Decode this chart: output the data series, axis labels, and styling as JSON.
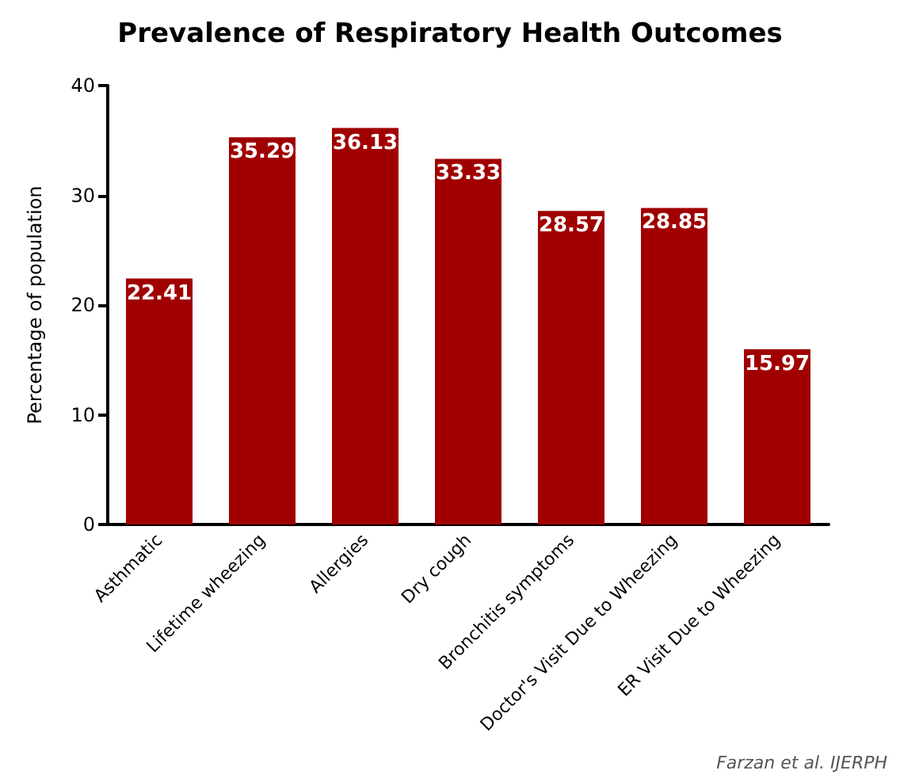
{
  "chart_data": {
    "type": "bar",
    "title": "Prevalence of Respiratory Health Outcomes",
    "ylabel": "Percentage of population",
    "categories": [
      "Asthmatic",
      "Lifetime wheezing",
      "Allergies",
      "Dry cough",
      "Bronchitis symptoms",
      "Doctor's Visit Due to Wheezing",
      "ER Visit Due to Wheezing"
    ],
    "values": [
      22.41,
      35.29,
      36.13,
      33.33,
      28.57,
      28.85,
      15.97
    ],
    "color": "#a00000",
    "ylim": [
      0,
      40
    ],
    "yticks": [
      0,
      10,
      20,
      30,
      40
    ],
    "grid": false,
    "data_labels": true,
    "annotations": [
      "Farzan et al. IJERPH"
    ]
  }
}
